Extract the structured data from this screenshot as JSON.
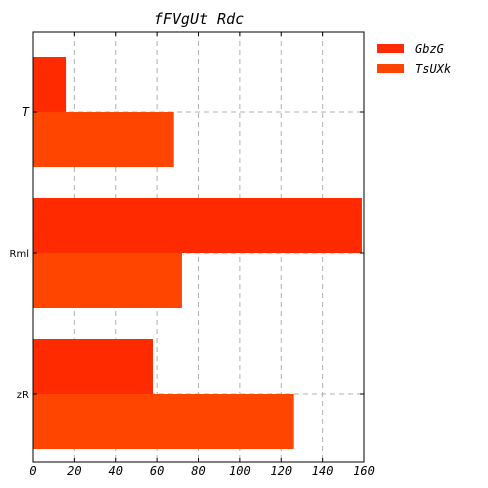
{
  "chart_data": {
    "type": "bar",
    "orientation": "horizontal",
    "title": "fFVgUt Rdc",
    "xlabel": "",
    "ylabel": "",
    "categories": [
      "T",
      "Rml",
      "zR"
    ],
    "xlim": [
      0,
      160
    ],
    "x_ticks": [
      0,
      20,
      40,
      60,
      80,
      100,
      120,
      140,
      160
    ],
    "grid": true,
    "legend_position": "top-right, outside plot",
    "series": [
      {
        "name": "GbzG",
        "color": "#ff2a00",
        "values": [
          16,
          159,
          58
        ]
      },
      {
        "name": "TsUXk",
        "color": "#ff4500",
        "values": [
          68,
          72,
          126
        ]
      }
    ]
  }
}
